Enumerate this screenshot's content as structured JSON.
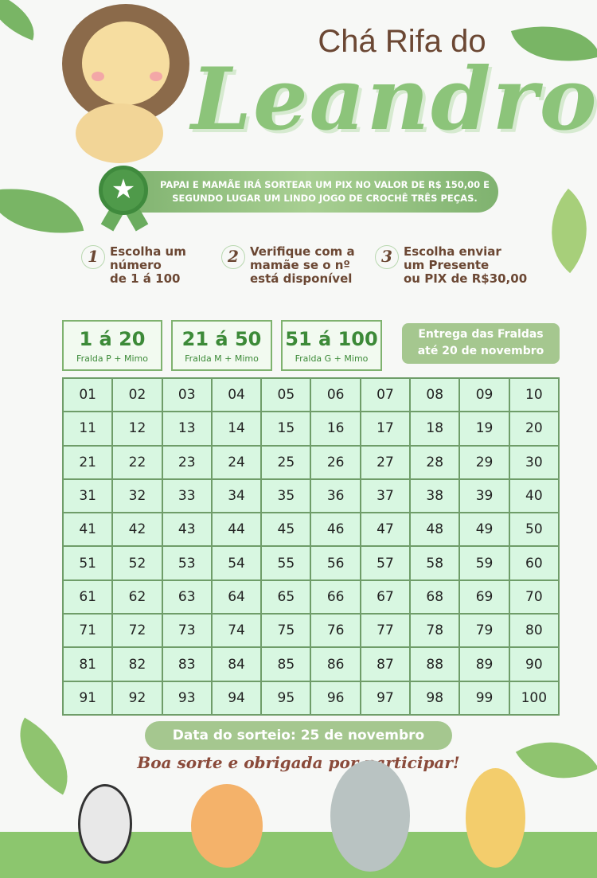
{
  "header": {
    "pretitle": "Chá Rifa do",
    "name": "Leandro"
  },
  "prize_banner": {
    "line1": "PAPAI E MAMÃE IRÁ SORTEAR UM PIX NO VALOR DE R$ 150,00 E",
    "line2": "SEGUNDO LUGAR UM LINDO JOGO DE CROCHÊ TRÊS PEÇAS."
  },
  "steps": [
    {
      "num": "1",
      "lines": [
        "Escolha um",
        "número",
        "de 1 á 100"
      ]
    },
    {
      "num": "2",
      "lines": [
        "Verifique com a",
        "mamãe se o nº",
        "está disponível"
      ]
    },
    {
      "num": "3",
      "lines": [
        "Escolha enviar",
        "um Presente",
        "ou PIX de R$30,00"
      ]
    }
  ],
  "ranges": [
    {
      "range": "1 á 20",
      "desc": "Fralda P + Mimo"
    },
    {
      "range": "21 á 50",
      "desc": "Fralda M + Mimo"
    },
    {
      "range": "51 á 100",
      "desc": "Fralda G + Mimo"
    }
  ],
  "delivery": {
    "line1": "Entrega das Fraldas",
    "line2": "até 20 de novembro"
  },
  "numbers": [
    "01",
    "02",
    "03",
    "04",
    "05",
    "06",
    "07",
    "08",
    "09",
    "10",
    "11",
    "12",
    "13",
    "14",
    "15",
    "16",
    "17",
    "18",
    "19",
    "20",
    "21",
    "22",
    "23",
    "24",
    "25",
    "26",
    "27",
    "28",
    "29",
    "30",
    "31",
    "32",
    "33",
    "34",
    "35",
    "36",
    "37",
    "38",
    "39",
    "40",
    "41",
    "42",
    "43",
    "44",
    "45",
    "46",
    "47",
    "48",
    "49",
    "50",
    "51",
    "52",
    "53",
    "54",
    "55",
    "56",
    "57",
    "58",
    "59",
    "60",
    "61",
    "62",
    "63",
    "64",
    "65",
    "66",
    "67",
    "68",
    "69",
    "70",
    "71",
    "72",
    "73",
    "74",
    "75",
    "76",
    "77",
    "78",
    "79",
    "80",
    "81",
    "82",
    "83",
    "84",
    "85",
    "86",
    "87",
    "88",
    "89",
    "90",
    "91",
    "92",
    "93",
    "94",
    "95",
    "96",
    "97",
    "98",
    "99",
    "100"
  ],
  "footer": {
    "draw_date": "Data do sorteio: 25 de novembro",
    "thanks": "Boa sorte e obrigada por participar!"
  },
  "colors": {
    "green": "#8cc47a",
    "dark_green": "#3c8a38",
    "cell_bg": "#d8f7e1",
    "brown": "#6b4733"
  }
}
